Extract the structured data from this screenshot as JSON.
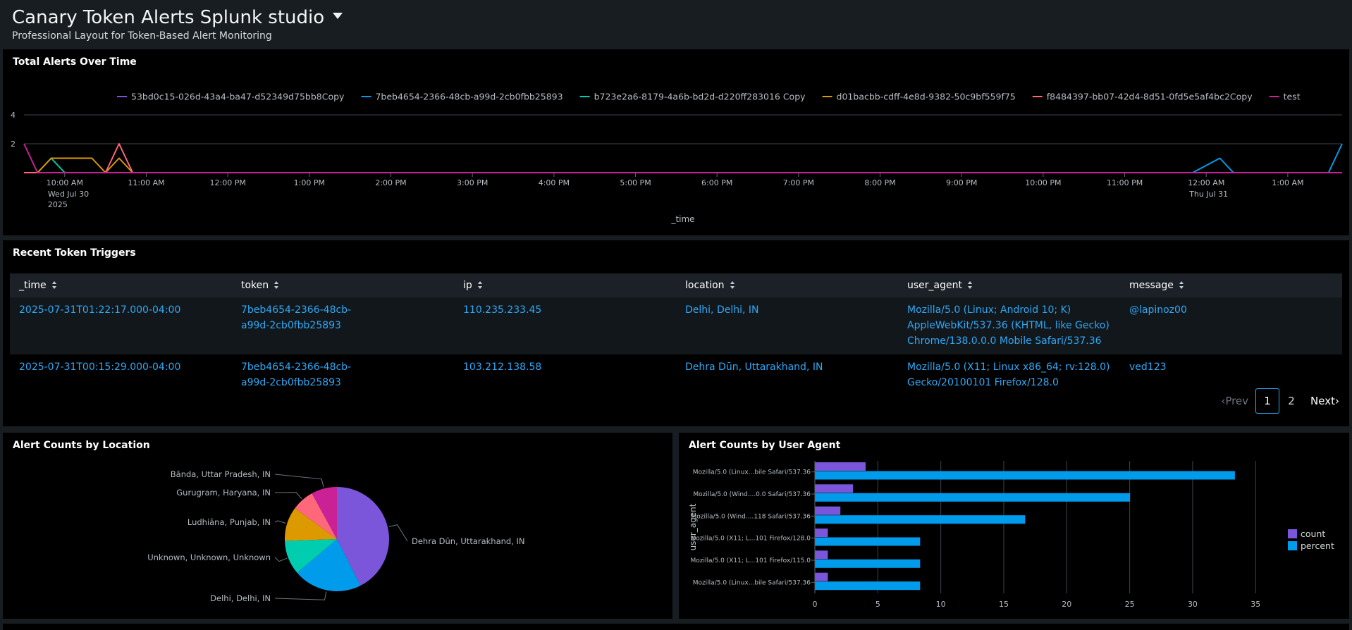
{
  "dashboard": {
    "title": "Canary Token Alerts Splunk studio",
    "subtitle": "Professional Layout for Token-Based Alert Monitoring"
  },
  "panels": {
    "line": {
      "title": "Total Alerts Over Time"
    },
    "table": {
      "title": "Recent Token Triggers"
    },
    "pie": {
      "title": "Alert Counts by Location"
    },
    "bar": {
      "title": "Alert Counts by User Agent"
    }
  },
  "colors": {
    "purple": "#7b56db",
    "blue": "#009ceb",
    "teal": "#00cdaf",
    "orange": "#dd9900",
    "pink": "#ff677b",
    "magenta": "#cb2196",
    "link": "#2ea8f5"
  },
  "chart_data": [
    {
      "type": "line",
      "title": "Total Alerts Over Time",
      "xlabel": "_time",
      "ylabel": "",
      "yticks": [
        2,
        4
      ],
      "ylim": [
        0,
        4
      ],
      "xlim": [
        "2025-07-30 09:30",
        "2025-07-31 01:40"
      ],
      "xticks": [
        {
          "t": "2025-07-30 10:00",
          "label": "10:00 AM",
          "sub": [
            "Wed Jul 30",
            "2025"
          ]
        },
        {
          "t": "2025-07-30 11:00",
          "label": "11:00 AM"
        },
        {
          "t": "2025-07-30 12:00",
          "label": "12:00 PM"
        },
        {
          "t": "2025-07-30 13:00",
          "label": "1:00 PM"
        },
        {
          "t": "2025-07-30 14:00",
          "label": "2:00 PM"
        },
        {
          "t": "2025-07-30 15:00",
          "label": "3:00 PM"
        },
        {
          "t": "2025-07-30 16:00",
          "label": "4:00 PM"
        },
        {
          "t": "2025-07-30 17:00",
          "label": "5:00 PM"
        },
        {
          "t": "2025-07-30 18:00",
          "label": "6:00 PM"
        },
        {
          "t": "2025-07-30 19:00",
          "label": "7:00 PM"
        },
        {
          "t": "2025-07-30 20:00",
          "label": "8:00 PM"
        },
        {
          "t": "2025-07-30 21:00",
          "label": "9:00 PM"
        },
        {
          "t": "2025-07-30 22:00",
          "label": "10:00 PM"
        },
        {
          "t": "2025-07-30 23:00",
          "label": "11:00 PM"
        },
        {
          "t": "2025-07-31 00:00",
          "label": "12:00 AM",
          "sub": [
            "Thu Jul 31"
          ]
        },
        {
          "t": "2025-07-31 01:00",
          "label": "1:00 AM"
        }
      ],
      "legend_position": "top",
      "series": [
        {
          "name": "53bd0c15-026d-43a4-ba47-d52349d75bb8Copy",
          "color": "#7b56db",
          "points": [
            [
              "2025-07-30 09:30",
              0
            ],
            [
              "2025-07-31 01:40",
              0
            ]
          ]
        },
        {
          "name": "7beb4654-2366-48cb-a99d-2cb0fbb25893",
          "color": "#009ceb",
          "points": [
            [
              "2025-07-30 09:30",
              0
            ],
            [
              "2025-07-30 23:50",
              0
            ],
            [
              "2025-07-31 00:10",
              1
            ],
            [
              "2025-07-31 00:20",
              0
            ],
            [
              "2025-07-31 01:30",
              0
            ],
            [
              "2025-07-31 01:40",
              2
            ]
          ]
        },
        {
          "name": "b723e2a6-8179-4a6b-bd2d-d220ff283016 Copy",
          "color": "#00cdaf",
          "points": [
            [
              "2025-07-30 09:30",
              0
            ],
            [
              "2025-07-30 09:40",
              0
            ],
            [
              "2025-07-30 09:50",
              1
            ],
            [
              "2025-07-30 10:00",
              0
            ],
            [
              "2025-07-31 01:40",
              0
            ]
          ]
        },
        {
          "name": "d01bacbb-cdff-4e8d-9382-50c9bf559f75",
          "color": "#dd9900",
          "points": [
            [
              "2025-07-30 09:30",
              0
            ],
            [
              "2025-07-30 09:40",
              0
            ],
            [
              "2025-07-30 09:50",
              1
            ],
            [
              "2025-07-30 10:20",
              1
            ],
            [
              "2025-07-30 10:30",
              0
            ],
            [
              "2025-07-30 10:40",
              1
            ],
            [
              "2025-07-30 10:50",
              0
            ],
            [
              "2025-07-31 01:40",
              0
            ]
          ]
        },
        {
          "name": "f8484397-bb07-42d4-8d51-0fd5e5af4bc2Copy",
          "color": "#ff677b",
          "points": [
            [
              "2025-07-30 09:30",
              0
            ],
            [
              "2025-07-30 10:30",
              0
            ],
            [
              "2025-07-30 10:40",
              2
            ],
            [
              "2025-07-30 10:50",
              0
            ],
            [
              "2025-07-31 01:40",
              0
            ]
          ]
        },
        {
          "name": "test",
          "color": "#cb2196",
          "points": [
            [
              "2025-07-30 09:30",
              2
            ],
            [
              "2025-07-30 09:40",
              0
            ],
            [
              "2025-07-31 01:40",
              0
            ]
          ]
        }
      ]
    },
    {
      "type": "pie",
      "title": "Alert Counts by Location",
      "slices": [
        {
          "label": "Dehra Dūn, Uttarakhand, IN",
          "value": 8,
          "color": "#7b56db"
        },
        {
          "label": "Delhi, Delhi, IN",
          "value": 4,
          "color": "#009ceb"
        },
        {
          "label": "Unknown, Unknown, Unknown",
          "value": 2,
          "color": "#00cdaf"
        },
        {
          "label": "Ludhiāna, Punjab, IN",
          "value": 2,
          "color": "#dd9900"
        },
        {
          "label": "Gurugram, Haryana, IN",
          "value": 1.3,
          "color": "#ff677b"
        },
        {
          "label": "Bānda, Uttar Pradesh, IN",
          "value": 1.5,
          "color": "#cb2196"
        }
      ]
    },
    {
      "type": "bar",
      "orientation": "horizontal",
      "title": "Alert Counts by User Agent",
      "ylabel": "user_agent",
      "xlim": [
        0,
        37
      ],
      "xticks": [
        0,
        5,
        10,
        15,
        20,
        25,
        30,
        35
      ],
      "legend_position": "right",
      "categories": [
        "Mozilla/5.0 (Linux...bile Safari/537.36",
        "Mozilla/5.0 (Wind....0.0 Safari/537.36",
        "Mozilla/5.0 (Wind....118 Safari/537.36",
        "Mozilla/5.0 (X11; L...101 Firefox/128.0",
        "Mozilla/5.0 (X11; L...101 Firefox/115.0",
        "Mozilla/5.0 (Linux...bile Safari/537.36"
      ],
      "series": [
        {
          "name": "count",
          "color": "#7b56db",
          "values": [
            4,
            3,
            2,
            1,
            1,
            1
          ]
        },
        {
          "name": "percent",
          "color": "#009ceb",
          "values": [
            33.33,
            25,
            16.67,
            8.33,
            8.33,
            8.33
          ]
        }
      ]
    }
  ],
  "table": {
    "columns": [
      "_time",
      "token",
      "ip",
      "location",
      "user_agent",
      "message"
    ],
    "rows": [
      {
        "time": "2025-07-31T01:22:17.000-04:00",
        "token": "7beb4654-2366-48cb-a99d-2cb0fbb25893",
        "ip": "110.235.233.45",
        "location": "Delhi, Delhi, IN",
        "user_agent": "Mozilla/5.0 (Linux; Android 10; K) AppleWebKit/537.36 (KHTML, like Gecko) Chrome/138.0.0.0 Mobile Safari/537.36",
        "message": "@lapinoz00"
      },
      {
        "time": "2025-07-31T00:15:29.000-04:00",
        "token": "7beb4654-2366-48cb-a99d-2cb0fbb25893",
        "ip": "103.212.138.58",
        "location": "Dehra Dūn, Uttarakhand, IN",
        "user_agent": "Mozilla/5.0 (X11; Linux x86_64; rv:128.0) Gecko/20100101 Firefox/128.0",
        "message": "ved123"
      }
    ],
    "pagination": {
      "prev": "Prev",
      "pages": [
        "1",
        "2"
      ],
      "current": "1",
      "next": "Next"
    }
  }
}
